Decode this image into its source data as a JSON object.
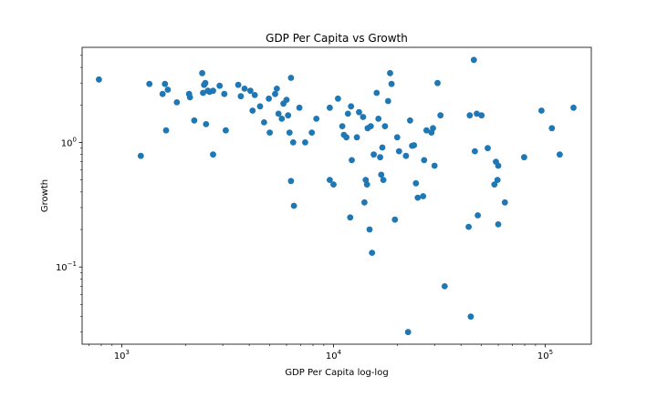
{
  "chart_data": {
    "type": "scatter",
    "title": "GDP Per Capita vs Growth",
    "xlabel": "GDP Per Capita log-log",
    "ylabel": "Growth",
    "xscale": "log",
    "yscale": "log",
    "xlim": [
      650,
      165000
    ],
    "ylim": [
      0.024,
      5.8
    ],
    "grid": false,
    "marker_color": "#1f77b4",
    "x_ticks": [
      {
        "base": "10",
        "exp": "3",
        "value": 1000
      },
      {
        "base": "10",
        "exp": "4",
        "value": 10000
      },
      {
        "base": "10",
        "exp": "5",
        "value": 100000
      }
    ],
    "y_ticks": [
      {
        "base": "10",
        "exp": "−1",
        "value": 0.1
      },
      {
        "base": "10",
        "exp": "0",
        "value": 1
      }
    ],
    "points": [
      [
        780,
        3.2
      ],
      [
        1230,
        0.78
      ],
      [
        1350,
        2.95
      ],
      [
        1560,
        2.45
      ],
      [
        1600,
        2.95
      ],
      [
        1650,
        2.65
      ],
      [
        1620,
        1.25
      ],
      [
        1820,
        2.1
      ],
      [
        2080,
        2.45
      ],
      [
        2100,
        2.3
      ],
      [
        2200,
        1.5
      ],
      [
        2400,
        3.6
      ],
      [
        2420,
        2.5
      ],
      [
        2450,
        2.9
      ],
      [
        2500,
        1.4
      ],
      [
        2480,
        3.0
      ],
      [
        2550,
        2.6
      ],
      [
        2600,
        2.55
      ],
      [
        2700,
        2.6
      ],
      [
        2700,
        0.8
      ],
      [
        2900,
        2.85
      ],
      [
        3050,
        2.45
      ],
      [
        3100,
        1.25
      ],
      [
        3550,
        2.9
      ],
      [
        3650,
        2.35
      ],
      [
        3800,
        2.7
      ],
      [
        4050,
        2.6
      ],
      [
        4150,
        1.8
      ],
      [
        4250,
        2.4
      ],
      [
        4500,
        1.95
      ],
      [
        4700,
        1.45
      ],
      [
        4950,
        2.25
      ],
      [
        5000,
        1.2
      ],
      [
        5300,
        2.45
      ],
      [
        5400,
        2.7
      ],
      [
        5500,
        1.7
      ],
      [
        5700,
        1.55
      ],
      [
        5800,
        2.05
      ],
      [
        6000,
        2.2
      ],
      [
        6100,
        1.65
      ],
      [
        6200,
        1.2
      ],
      [
        6300,
        3.3
      ],
      [
        6450,
        1.0
      ],
      [
        6300,
        0.49
      ],
      [
        6500,
        0.31
      ],
      [
        6900,
        1.9
      ],
      [
        7350,
        1.0
      ],
      [
        7900,
        1.2
      ],
      [
        8300,
        1.55
      ],
      [
        9600,
        1.9
      ],
      [
        9600,
        0.5
      ],
      [
        10000,
        0.46
      ],
      [
        10500,
        2.25
      ],
      [
        11000,
        1.35
      ],
      [
        11200,
        1.15
      ],
      [
        11700,
        1.7
      ],
      [
        11500,
        1.1
      ],
      [
        12100,
        1.95
      ],
      [
        12200,
        0.72
      ],
      [
        12000,
        0.25
      ],
      [
        12900,
        1.1
      ],
      [
        13200,
        1.75
      ],
      [
        13800,
        1.6
      ],
      [
        14200,
        0.5
      ],
      [
        14000,
        0.33
      ],
      [
        14500,
        1.3
      ],
      [
        14400,
        0.46
      ],
      [
        15000,
        1.35
      ],
      [
        14800,
        0.2
      ],
      [
        15200,
        0.13
      ],
      [
        15500,
        0.8
      ],
      [
        16000,
        2.5
      ],
      [
        16300,
        1.55
      ],
      [
        16600,
        0.76
      ],
      [
        16800,
        0.55
      ],
      [
        17000,
        0.91
      ],
      [
        17200,
        0.5
      ],
      [
        17500,
        1.35
      ],
      [
        18100,
        2.15
      ],
      [
        18500,
        3.6
      ],
      [
        18800,
        2.95
      ],
      [
        19500,
        0.24
      ],
      [
        20000,
        1.1
      ],
      [
        20400,
        0.85
      ],
      [
        22000,
        0.78
      ],
      [
        22500,
        0.03
      ],
      [
        23000,
        1.5
      ],
      [
        23500,
        0.94
      ],
      [
        24000,
        0.95
      ],
      [
        24500,
        0.47
      ],
      [
        25000,
        0.36
      ],
      [
        26500,
        0.37
      ],
      [
        26800,
        0.72
      ],
      [
        27500,
        1.25
      ],
      [
        29000,
        1.2
      ],
      [
        29500,
        1.3
      ],
      [
        30000,
        0.65
      ],
      [
        31000,
        3.0
      ],
      [
        32000,
        1.65
      ],
      [
        33500,
        0.07
      ],
      [
        43500,
        0.21
      ],
      [
        44500,
        0.04
      ],
      [
        44000,
        1.65
      ],
      [
        46000,
        4.6
      ],
      [
        46500,
        0.85
      ],
      [
        47500,
        1.7
      ],
      [
        48000,
        0.26
      ],
      [
        50000,
        1.65
      ],
      [
        53500,
        0.9
      ],
      [
        57500,
        0.46
      ],
      [
        58500,
        0.7
      ],
      [
        59500,
        0.5
      ],
      [
        60000,
        0.65
      ],
      [
        60000,
        0.22
      ],
      [
        64500,
        0.33
      ],
      [
        79500,
        0.76
      ],
      [
        96000,
        1.8
      ],
      [
        107500,
        1.3
      ],
      [
        117000,
        0.8
      ],
      [
        136000,
        1.9
      ]
    ]
  }
}
